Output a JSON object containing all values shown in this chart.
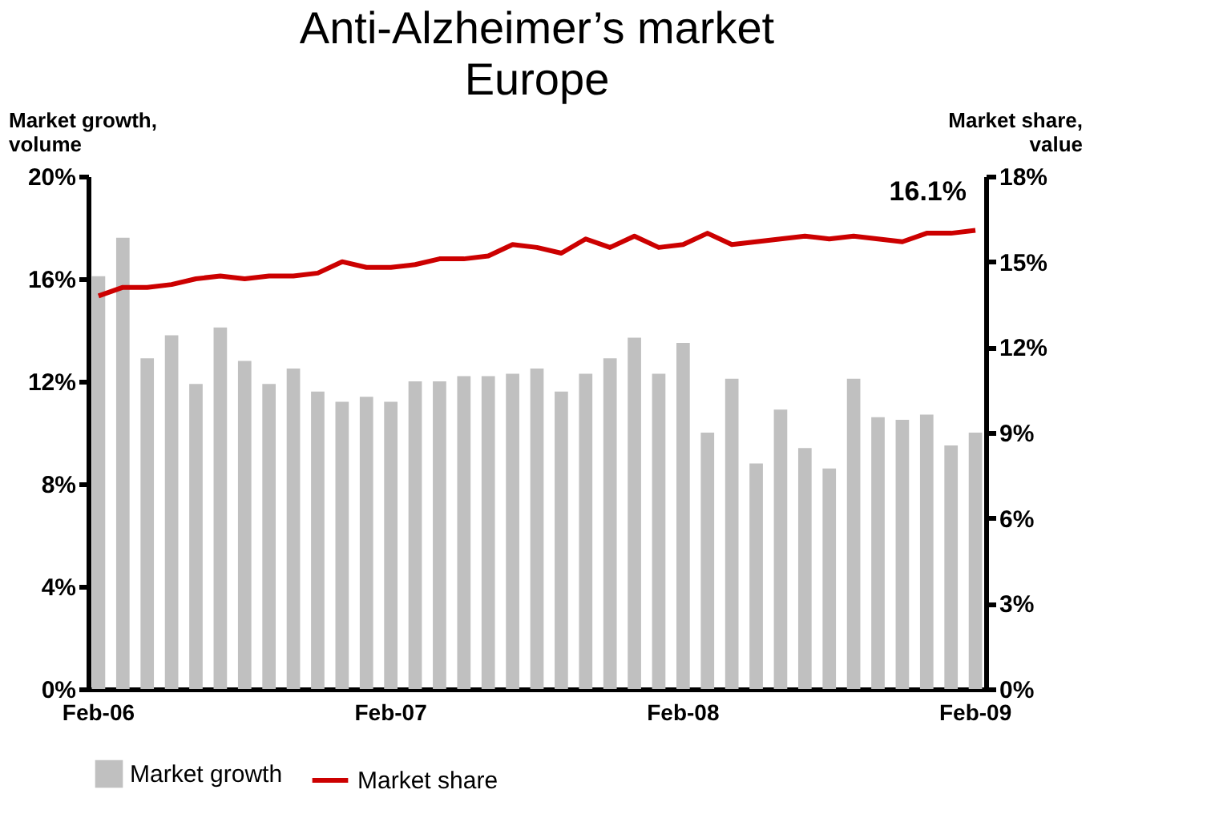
{
  "chart_data": {
    "type": "bar",
    "title": "Anti-Alzheimer’s market Europe",
    "ylabel": "Market growth, volume",
    "y2label": "Market share, value",
    "categories": [
      "Feb-06",
      null,
      null,
      null,
      null,
      null,
      null,
      null,
      null,
      null,
      null,
      null,
      "Feb-07",
      null,
      null,
      null,
      null,
      null,
      null,
      null,
      null,
      null,
      null,
      null,
      "Feb-08",
      null,
      null,
      null,
      null,
      null,
      null,
      null,
      null,
      null,
      null,
      null,
      "Feb-09"
    ],
    "series": [
      {
        "name": "Market growth",
        "type": "bar",
        "color": "#c0c0c0",
        "values": [
          16.1,
          17.6,
          12.9,
          13.8,
          11.9,
          14.1,
          12.8,
          11.9,
          12.5,
          11.6,
          11.2,
          11.4,
          11.2,
          12.0,
          12.0,
          12.2,
          12.2,
          12.3,
          12.5,
          11.6,
          12.3,
          12.9,
          13.7,
          12.3,
          13.5,
          10.0,
          12.1,
          8.8,
          10.9,
          9.4,
          8.6,
          12.1,
          10.6,
          10.5,
          10.7,
          9.5,
          10.0
        ]
      },
      {
        "name": "Market share",
        "type": "line",
        "axis": "y2",
        "color": "#cc0000",
        "values": [
          13.8,
          14.1,
          14.1,
          14.2,
          14.4,
          14.5,
          14.4,
          14.5,
          14.5,
          14.6,
          15.0,
          14.8,
          14.8,
          14.9,
          15.1,
          15.1,
          15.2,
          15.6,
          15.5,
          15.3,
          15.8,
          15.5,
          15.9,
          15.5,
          15.6,
          16.0,
          15.6,
          15.7,
          15.8,
          15.9,
          15.8,
          15.9,
          15.8,
          15.7,
          16.0,
          16.0,
          16.1
        ]
      }
    ],
    "ylim": [
      0,
      20
    ],
    "yticks": [
      {
        "value": 0,
        "label": "0%"
      },
      {
        "value": 4,
        "label": "4%"
      },
      {
        "value": 8,
        "label": "8%"
      },
      {
        "value": 12,
        "label": "12%"
      },
      {
        "value": 16,
        "label": "16%"
      },
      {
        "value": 20,
        "label": "20%"
      }
    ],
    "y2lim": [
      0,
      18
    ],
    "y2ticks": [
      {
        "value": 0,
        "label": "0%"
      },
      {
        "value": 3,
        "label": "3%"
      },
      {
        "value": 6,
        "label": "6%"
      },
      {
        "value": 9,
        "label": "9%"
      },
      {
        "value": 12,
        "label": "12%"
      },
      {
        "value": 15,
        "label": "15%"
      },
      {
        "value": 18,
        "label": "18%"
      }
    ],
    "annotations": [
      "16.1%"
    ],
    "grid": false,
    "legend": "bottom",
    "line_style": "solid",
    "marker": "none"
  }
}
